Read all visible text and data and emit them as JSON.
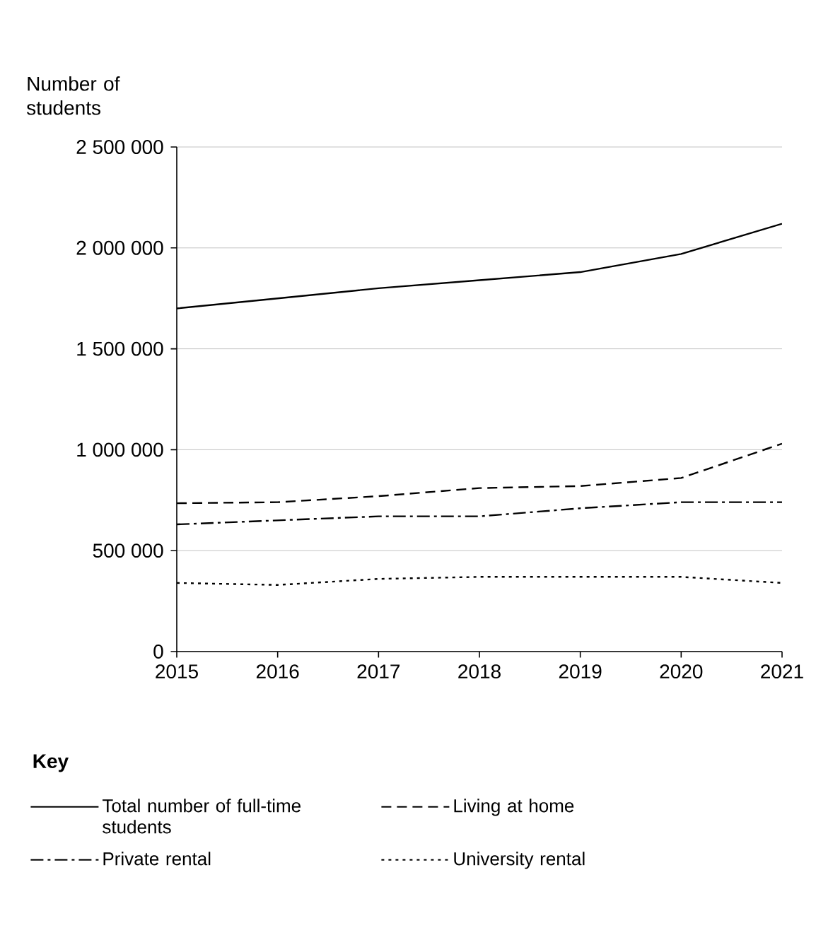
{
  "chart_data": {
    "type": "line",
    "ylabel": "Number of students",
    "legend_title": "Key",
    "x": [
      2015,
      2016,
      2017,
      2018,
      2019,
      2020,
      2021
    ],
    "xlim": [
      2015,
      2021
    ],
    "xticks": [
      2015,
      2016,
      2017,
      2018,
      2019,
      2020,
      2021
    ],
    "ylim": [
      0,
      2500000
    ],
    "yticks": [
      0,
      {
        "value": 500000,
        "label": "500 000"
      },
      {
        "value": 1000000,
        "label": "1 000 000"
      },
      {
        "value": 1500000,
        "label": "1 500 000"
      },
      {
        "value": 2000000,
        "label": "2 000 000"
      },
      {
        "value": 2500000,
        "label": "2 500 000"
      }
    ],
    "grid": "y",
    "legend": "bottom",
    "marker": "none",
    "series": [
      {
        "name": "Total number of full-time students",
        "color": "#000000",
        "line_style": "solid",
        "values": [
          1700000,
          1750000,
          1800000,
          1840000,
          1880000,
          1970000,
          2120000
        ]
      },
      {
        "name": "Living at home",
        "color": "#000000",
        "line_style": "dashed",
        "values": [
          735000,
          740000,
          770000,
          810000,
          820000,
          860000,
          1030000
        ]
      },
      {
        "name": "Private rental",
        "color": "#000000",
        "line_style": "dashdot",
        "values": [
          630000,
          650000,
          670000,
          670000,
          710000,
          740000,
          740000
        ]
      },
      {
        "name": "University rental",
        "color": "#000000",
        "line_style": "dotted",
        "values": [
          340000,
          330000,
          360000,
          370000,
          370000,
          370000,
          340000
        ]
      }
    ]
  }
}
